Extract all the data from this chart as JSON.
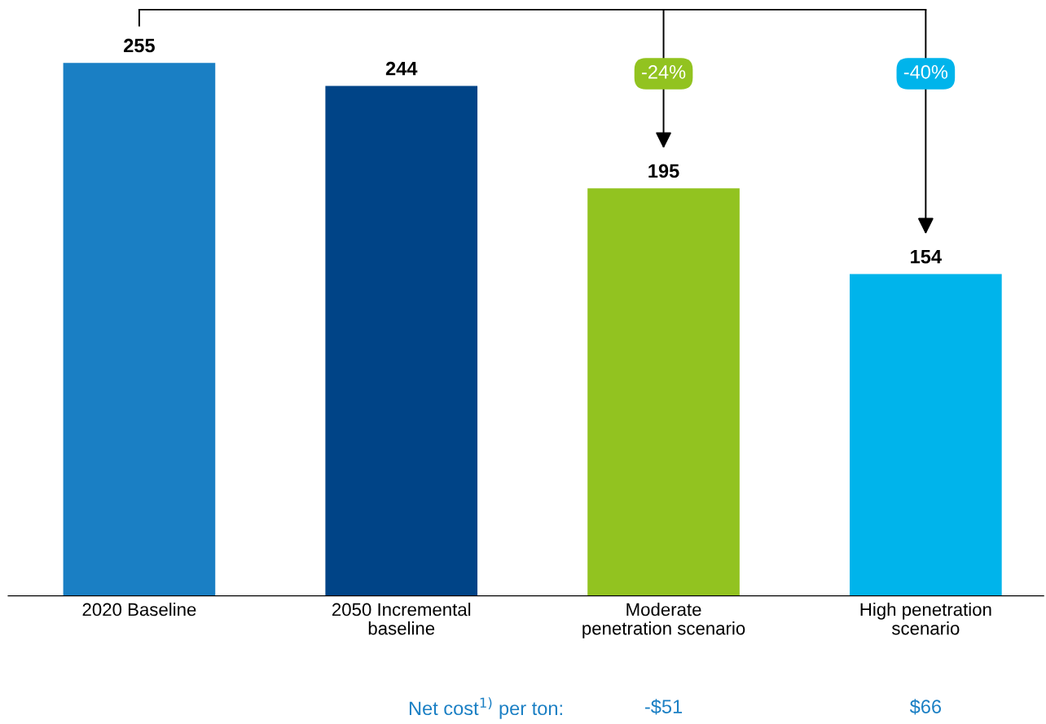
{
  "chart_data": {
    "type": "bar",
    "categories": [
      "2020 Baseline",
      "2050 Incremental\nbaseline",
      "Moderate\npenetration scenario",
      "High penetration\nscenario"
    ],
    "values": [
      255,
      244,
      195,
      154
    ],
    "colors": [
      "#1a7fc4",
      "#004487",
      "#92c320",
      "#00b4eb"
    ],
    "data_labels": true,
    "grid": false,
    "legend": false,
    "annotations": [
      "-24%",
      "-40%",
      "Net cost$^{1)}$ per ton:",
      "-$51",
      "$66"
    ]
  }
}
